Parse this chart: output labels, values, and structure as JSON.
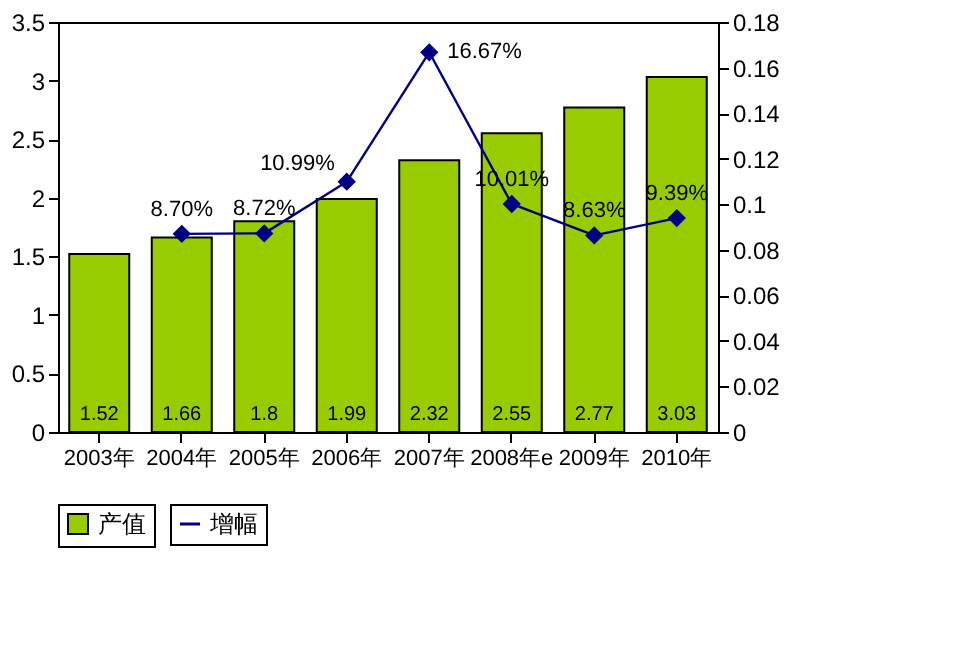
{
  "chart_data": {
    "type": "bar",
    "categories": [
      "2003年",
      "2004年",
      "2005年",
      "2006年",
      "2007年",
      "2008年e",
      "2009年",
      "2010年"
    ],
    "series": [
      {
        "name": "产值",
        "color": "#99cc00",
        "values": [
          1.52,
          1.66,
          1.8,
          1.99,
          2.32,
          2.55,
          2.77,
          3.03
        ],
        "value_labels": [
          "1.52",
          "1.66",
          "1.8",
          "1.99",
          "2.32",
          "2.55",
          "2.77",
          "3.03"
        ]
      },
      {
        "name": "增幅",
        "type": "line",
        "axis": "y2",
        "color": "#000080",
        "marker": "diamond",
        "line_style": "solid",
        "values": [
          null,
          0.087,
          0.0872,
          0.1099,
          0.1667,
          0.1001,
          0.0863,
          0.0939
        ],
        "value_labels": [
          null,
          "8.70%",
          "8.72%",
          "10.99%",
          "16.67%",
          "10.01%",
          "8.63%",
          "9.39%"
        ]
      }
    ],
    "ylim": [
      0,
      3.5
    ],
    "yticks": [
      0,
      0.5,
      1,
      1.5,
      2,
      2.5,
      3,
      3.5
    ],
    "y2lim": [
      0,
      0.18
    ],
    "y2ticks": [
      0,
      0.02,
      0.04,
      0.06,
      0.08,
      0.1,
      0.12,
      0.14,
      0.16,
      0.18
    ],
    "grid": false,
    "legend": "bottom"
  }
}
